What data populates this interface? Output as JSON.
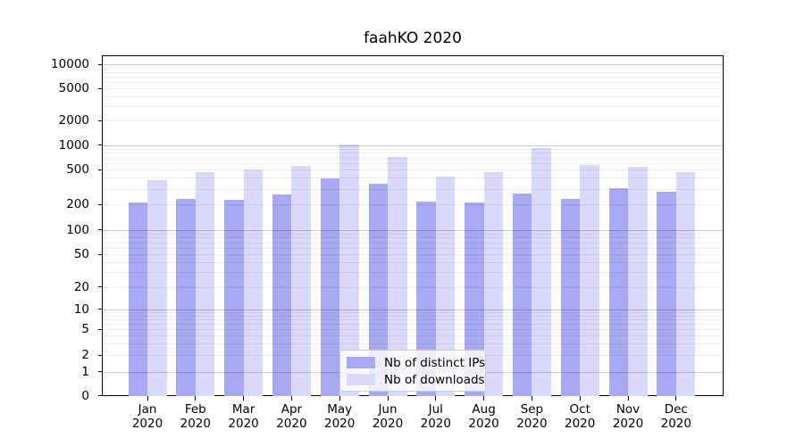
{
  "title": "faahKO 2020",
  "chart_data": {
    "type": "bar",
    "title": "faahKO 2020",
    "categories": [
      "Jan",
      "Feb",
      "Mar",
      "Apr",
      "May",
      "Jun",
      "Jul",
      "Aug",
      "Sep",
      "Oct",
      "Nov",
      "Dec"
    ],
    "category_year": "2020",
    "series": [
      {
        "name": "Nb of distinct IPs",
        "color": "#a9a9f3",
        "values": [
          211,
          232,
          224,
          261,
          395,
          343,
          216,
          208,
          265,
          232,
          305,
          280
        ]
      },
      {
        "name": "Nb of downloads",
        "color": "#d9d9fa",
        "values": [
          375,
          463,
          500,
          553,
          1020,
          710,
          410,
          463,
          925,
          570,
          540,
          465
        ]
      }
    ],
    "yscale": "symlog (log above 1, linear 0-1)",
    "ylim": [
      0,
      13000
    ],
    "y_ticks": [
      0,
      1,
      2,
      5,
      10,
      20,
      50,
      100,
      200,
      500,
      1000,
      2000,
      5000,
      10000
    ],
    "major_grid_values": [
      1,
      10,
      100,
      1000,
      10000
    ],
    "grid": "horizontal; faint minor lines at 2-9 of each decade, darker at powers of 10",
    "legend_position": "lower center",
    "xlabel": "",
    "ylabel": ""
  },
  "colors": {
    "background": "#ffffff",
    "axis": "#000000",
    "major_gridline": "rgba(0,0,0,0.20)",
    "minor_gridline": "rgba(0,0,0,0.065)",
    "bar_distinct_ips": "#a9a9f3",
    "bar_downloads": "#d9d9fa",
    "legend_border": "#cbcbcb"
  }
}
